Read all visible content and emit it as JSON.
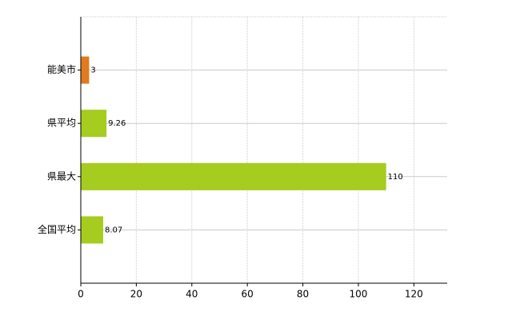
{
  "chart_data": {
    "type": "hbar",
    "categories": [
      "能美市",
      "県平均",
      "県最大",
      "全国平均"
    ],
    "values": [
      3,
      9.26,
      110,
      8.07
    ],
    "colors": [
      "#e07b20",
      "#a5cc1e",
      "#a5cc1e",
      "#a5cc1e"
    ],
    "xlim": [
      0,
      132
    ],
    "xticks": [
      0,
      20,
      40,
      60,
      80,
      100,
      120
    ],
    "grid": true
  }
}
